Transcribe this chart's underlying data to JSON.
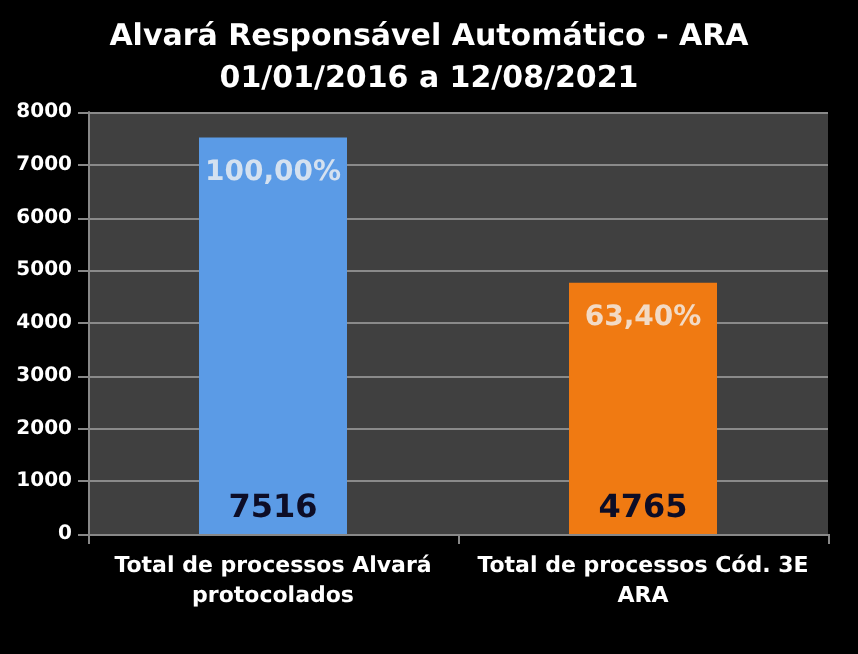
{
  "chart_data": {
    "type": "bar",
    "title": "Alvará Responsável Automático - ARA\n01/01/2016 a 12/08/2021",
    "categories": [
      "Total de processos Alvará\nprotocolados",
      "Total de processos Cód. 3E\nARA"
    ],
    "values": [
      7516,
      4765
    ],
    "colors": [
      "#5b9be6",
      "#f07a12"
    ],
    "data_labels": true,
    "annotations": [
      {
        "text": "100,00%",
        "x": "Total de processos Alvará\nprotocolados",
        "y": 7516
      },
      {
        "text": "63,40%",
        "x": "Total de processos Cód. 3E\nARA",
        "y": 4765
      }
    ],
    "ylim": [
      0,
      8000
    ],
    "yticks": [
      0,
      1000,
      2000,
      3000,
      4000,
      5000,
      6000,
      7000,
      8000
    ],
    "grid": "y"
  }
}
